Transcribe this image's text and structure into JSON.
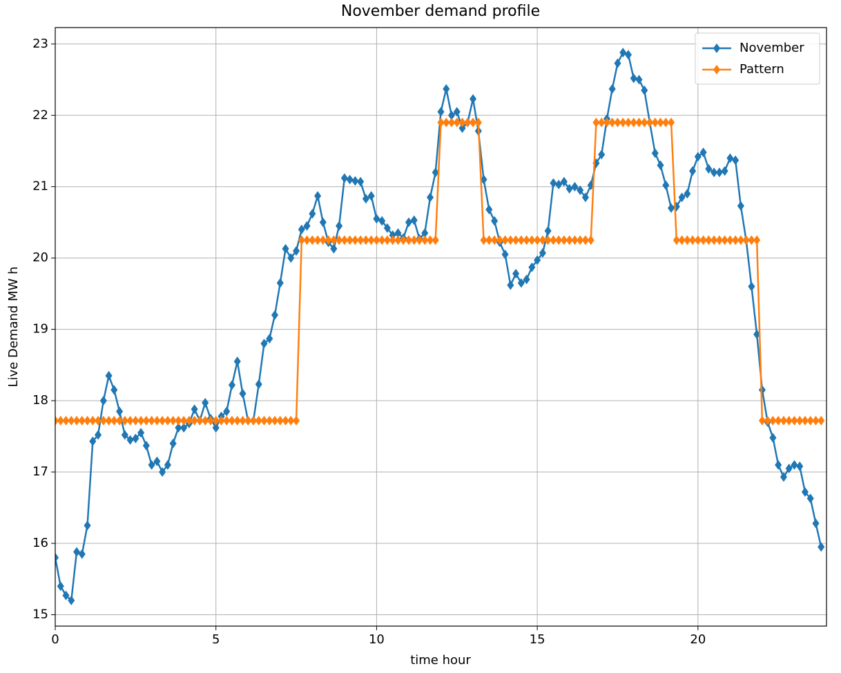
{
  "chart_data": {
    "type": "line",
    "title": "November demand profile",
    "xlabel": "time hour",
    "ylabel": "Live Demand MW h",
    "xlim": [
      0,
      24
    ],
    "ylim": [
      14.84,
      23.23
    ],
    "xticks": [
      0,
      5,
      10,
      15,
      20
    ],
    "yticks": [
      15,
      16,
      17,
      18,
      19,
      20,
      21,
      22,
      23
    ],
    "grid": true,
    "legend": "upper right",
    "x": [
      0,
      0.167,
      0.333,
      0.5,
      0.667,
      0.833,
      1,
      1.167,
      1.333,
      1.5,
      1.667,
      1.833,
      2,
      2.167,
      2.333,
      2.5,
      2.667,
      2.833,
      3,
      3.167,
      3.333,
      3.5,
      3.667,
      3.833,
      4,
      4.167,
      4.333,
      4.5,
      4.667,
      4.833,
      5,
      5.167,
      5.333,
      5.5,
      5.667,
      5.833,
      6,
      6.167,
      6.333,
      6.5,
      6.667,
      6.833,
      7,
      7.167,
      7.333,
      7.5,
      7.667,
      7.833,
      8,
      8.167,
      8.333,
      8.5,
      8.667,
      8.833,
      9,
      9.167,
      9.333,
      9.5,
      9.667,
      9.833,
      10,
      10.167,
      10.333,
      10.5,
      10.667,
      10.833,
      11,
      11.167,
      11.333,
      11.5,
      11.667,
      11.833,
      12,
      12.167,
      12.333,
      12.5,
      12.667,
      12.833,
      13,
      13.167,
      13.333,
      13.5,
      13.667,
      13.833,
      14,
      14.167,
      14.333,
      14.5,
      14.667,
      14.833,
      15,
      15.167,
      15.333,
      15.5,
      15.667,
      15.833,
      16,
      16.167,
      16.333,
      16.5,
      16.667,
      16.833,
      17,
      17.167,
      17.333,
      17.5,
      17.667,
      17.833,
      18,
      18.167,
      18.333,
      18.5,
      18.667,
      18.833,
      19,
      19.167,
      19.333,
      19.5,
      19.667,
      19.833,
      20,
      20.167,
      20.333,
      20.5,
      20.667,
      20.833,
      21,
      21.167,
      21.333,
      21.5,
      21.667,
      21.833,
      22,
      22.167,
      22.333,
      22.5,
      22.667,
      22.833,
      23,
      23.167,
      23.333,
      23.5,
      23.667,
      23.833
    ],
    "series": [
      {
        "name": "November",
        "color": "#1f77b4",
        "values": [
          15.8,
          15.4,
          15.27,
          15.2,
          15.88,
          15.85,
          16.25,
          17.43,
          17.52,
          18.0,
          18.35,
          18.15,
          17.85,
          17.52,
          17.45,
          17.47,
          17.55,
          17.37,
          17.1,
          17.15,
          17.0,
          17.1,
          17.4,
          17.62,
          17.62,
          17.68,
          17.88,
          17.72,
          17.97,
          17.75,
          17.62,
          17.78,
          17.85,
          18.22,
          18.55,
          18.1,
          17.72,
          17.72,
          18.23,
          18.8,
          18.87,
          19.2,
          19.65,
          20.13,
          20.0,
          20.1,
          20.4,
          20.45,
          20.62,
          20.87,
          20.5,
          20.22,
          20.13,
          20.45,
          21.12,
          21.1,
          21.08,
          21.07,
          20.83,
          20.87,
          20.55,
          20.52,
          20.42,
          20.32,
          20.35,
          20.28,
          20.5,
          20.53,
          20.27,
          20.35,
          20.85,
          21.2,
          22.05,
          22.37,
          22.0,
          22.05,
          21.82,
          21.9,
          22.23,
          21.78,
          21.1,
          20.68,
          20.52,
          20.22,
          20.05,
          19.62,
          19.78,
          19.65,
          19.7,
          19.87,
          19.97,
          20.07,
          20.38,
          21.05,
          21.03,
          21.07,
          20.97,
          21.0,
          20.95,
          20.85,
          21.02,
          21.33,
          21.45,
          21.95,
          22.37,
          22.73,
          22.88,
          22.85,
          22.52,
          22.5,
          22.35,
          21.9,
          21.47,
          21.3,
          21.02,
          20.7,
          20.72,
          20.85,
          20.9,
          21.22,
          21.42,
          21.48,
          21.25,
          21.2,
          21.2,
          21.22,
          21.4,
          21.37,
          20.73,
          20.25,
          19.6,
          18.93,
          18.15,
          17.7,
          17.48,
          17.1,
          16.93,
          17.05,
          17.1,
          17.08,
          16.72,
          16.63,
          16.28,
          15.95
        ]
      },
      {
        "name": "Pattern",
        "color": "#ff7f0e",
        "values": [
          17.72,
          17.72,
          17.72,
          17.72,
          17.72,
          17.72,
          17.72,
          17.72,
          17.72,
          17.72,
          17.72,
          17.72,
          17.72,
          17.72,
          17.72,
          17.72,
          17.72,
          17.72,
          17.72,
          17.72,
          17.72,
          17.72,
          17.72,
          17.72,
          17.72,
          17.72,
          17.72,
          17.72,
          17.72,
          17.72,
          17.72,
          17.72,
          17.72,
          17.72,
          17.72,
          17.72,
          17.72,
          17.72,
          17.72,
          17.72,
          17.72,
          17.72,
          17.72,
          17.72,
          17.72,
          17.72,
          20.25,
          20.25,
          20.25,
          20.25,
          20.25,
          20.25,
          20.25,
          20.25,
          20.25,
          20.25,
          20.25,
          20.25,
          20.25,
          20.25,
          20.25,
          20.25,
          20.25,
          20.25,
          20.25,
          20.25,
          20.25,
          20.25,
          20.25,
          20.25,
          20.25,
          20.25,
          21.9,
          21.9,
          21.9,
          21.9,
          21.9,
          21.9,
          21.9,
          21.9,
          20.25,
          20.25,
          20.25,
          20.25,
          20.25,
          20.25,
          20.25,
          20.25,
          20.25,
          20.25,
          20.25,
          20.25,
          20.25,
          20.25,
          20.25,
          20.25,
          20.25,
          20.25,
          20.25,
          20.25,
          20.25,
          21.9,
          21.9,
          21.9,
          21.9,
          21.9,
          21.9,
          21.9,
          21.9,
          21.9,
          21.9,
          21.9,
          21.9,
          21.9,
          21.9,
          21.9,
          20.25,
          20.25,
          20.25,
          20.25,
          20.25,
          20.25,
          20.25,
          20.25,
          20.25,
          20.25,
          20.25,
          20.25,
          20.25,
          20.25,
          20.25,
          20.25,
          17.72,
          17.72,
          17.72,
          17.72,
          17.72,
          17.72,
          17.72,
          17.72,
          17.72,
          17.72,
          17.72,
          17.72
        ]
      }
    ]
  }
}
